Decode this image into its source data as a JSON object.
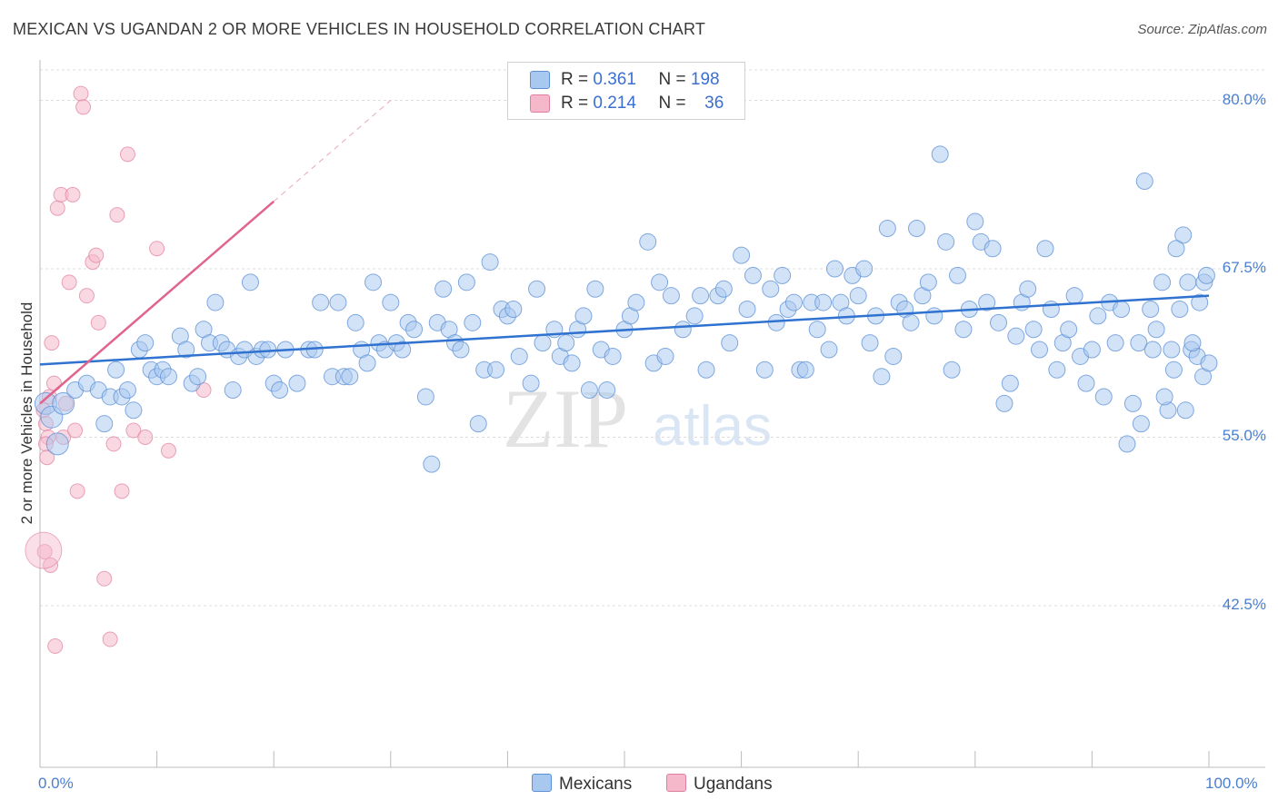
{
  "title": "MEXICAN VS UGANDAN 2 OR MORE VEHICLES IN HOUSEHOLD CORRELATION CHART",
  "source": "Source: ZipAtlas.com",
  "legend_stats": [
    {
      "r_label": "R =",
      "r_value": "0.361",
      "n_label": "N =",
      "n_value": "198",
      "color": "#a8c8f0"
    },
    {
      "r_label": "R =",
      "r_value": "0.214",
      "n_label": "N =",
      "n_value": "36",
      "color": "#f5b8cb"
    }
  ],
  "watermark": {
    "zip": "ZIP",
    "atlas": "atlas"
  },
  "colors": {
    "blue_fill": "#a8c8f0",
    "blue_stroke": "#5b8fd6",
    "blue_line": "#2f72d0",
    "pink_fill": "#f5b8cb",
    "pink_stroke": "#e07fa0",
    "pink_line": "#e0648e",
    "tick_text": "#4a7fd0"
  },
  "chart_data": {
    "type": "scatter",
    "title": "MEXICAN VS UGANDAN 2 OR MORE VEHICLES IN HOUSEHOLD CORRELATION CHART",
    "xlabel": "",
    "ylabel": "2 or more Vehicles in Household",
    "xlim": [
      0,
      100
    ],
    "ylim": [
      30.5,
      83.0
    ],
    "x_tick_labels": [
      "0.0%",
      "100.0%"
    ],
    "y_ticks": [
      42.5,
      55.0,
      67.5,
      80.0
    ],
    "y_tick_labels": [
      "42.5%",
      "55.0%",
      "67.5%",
      "80.0%"
    ],
    "grid": "horizontal dashed",
    "legend_position": "top-center and bottom",
    "series": [
      {
        "name": "Mexicans",
        "r": 0.361,
        "n": 198,
        "trend": {
          "x": [
            0,
            100
          ],
          "y": [
            60.4,
            65.5
          ]
        },
        "points": [
          [
            0.5,
            57.5
          ],
          [
            1,
            56.5
          ],
          [
            1.5,
            54.5
          ],
          [
            2,
            57.5
          ],
          [
            3,
            58.5
          ],
          [
            4,
            59
          ],
          [
            5,
            58.5
          ],
          [
            5.5,
            56
          ],
          [
            6,
            58
          ],
          [
            6.5,
            60
          ],
          [
            7,
            58
          ],
          [
            7.5,
            58.5
          ],
          [
            8,
            57
          ],
          [
            8.5,
            61.5
          ],
          [
            9,
            62
          ],
          [
            9.5,
            60
          ],
          [
            10,
            59.5
          ],
          [
            10.5,
            60
          ],
          [
            11,
            59.5
          ],
          [
            12,
            62.5
          ],
          [
            12.5,
            61.5
          ],
          [
            13,
            59
          ],
          [
            13.5,
            59.5
          ],
          [
            14,
            63
          ],
          [
            14.5,
            62
          ],
          [
            15,
            65
          ],
          [
            15.5,
            62
          ],
          [
            16,
            61.5
          ],
          [
            16.5,
            58.5
          ],
          [
            17,
            61
          ],
          [
            17.5,
            61.5
          ],
          [
            18,
            66.5
          ],
          [
            18.5,
            61
          ],
          [
            19,
            61.5
          ],
          [
            19.5,
            61.5
          ],
          [
            20,
            59
          ],
          [
            20.5,
            58.5
          ],
          [
            21,
            61.5
          ],
          [
            22,
            59
          ],
          [
            23,
            61.5
          ],
          [
            23.5,
            61.5
          ],
          [
            24,
            65
          ],
          [
            25,
            59.5
          ],
          [
            25.5,
            65
          ],
          [
            26,
            59.5
          ],
          [
            26.5,
            59.5
          ],
          [
            27,
            63.5
          ],
          [
            27.5,
            61.5
          ],
          [
            28,
            60.5
          ],
          [
            28.5,
            66.5
          ],
          [
            29,
            62
          ],
          [
            29.5,
            61.5
          ],
          [
            30,
            65
          ],
          [
            30.5,
            62
          ],
          [
            31,
            61.5
          ],
          [
            31.5,
            63.5
          ],
          [
            32,
            63
          ],
          [
            33,
            58
          ],
          [
            33.5,
            53
          ],
          [
            34,
            63.5
          ],
          [
            34.5,
            66
          ],
          [
            35,
            63
          ],
          [
            35.5,
            62
          ],
          [
            36,
            61.5
          ],
          [
            36.5,
            66.5
          ],
          [
            37,
            63.5
          ],
          [
            37.5,
            56
          ],
          [
            38,
            60
          ],
          [
            38.5,
            68
          ],
          [
            39,
            60
          ],
          [
            39.5,
            64.5
          ],
          [
            40,
            64
          ],
          [
            40.5,
            64.5
          ],
          [
            41,
            61
          ],
          [
            42,
            59
          ],
          [
            42.5,
            66
          ],
          [
            43,
            62
          ],
          [
            44,
            63
          ],
          [
            44.5,
            61
          ],
          [
            45,
            62
          ],
          [
            45.5,
            60.5
          ],
          [
            46,
            63
          ],
          [
            46.5,
            64
          ],
          [
            47,
            58.5
          ],
          [
            47.5,
            66
          ],
          [
            48,
            61.5
          ],
          [
            48.5,
            58.5
          ],
          [
            49,
            61
          ],
          [
            50,
            63
          ],
          [
            50.5,
            64
          ],
          [
            51,
            65
          ],
          [
            52,
            69.5
          ],
          [
            52.5,
            60.5
          ],
          [
            53,
            66.5
          ],
          [
            53.5,
            61
          ],
          [
            54,
            65.5
          ],
          [
            55,
            63
          ],
          [
            56,
            64
          ],
          [
            56.5,
            65.5
          ],
          [
            57,
            60
          ],
          [
            58,
            65.5
          ],
          [
            58.5,
            66
          ],
          [
            59,
            62
          ],
          [
            60,
            68.5
          ],
          [
            60.5,
            64.5
          ],
          [
            61,
            67
          ],
          [
            62,
            60
          ],
          [
            62.5,
            66
          ],
          [
            63,
            63.5
          ],
          [
            63.5,
            67
          ],
          [
            64,
            64.5
          ],
          [
            64.5,
            65
          ],
          [
            65,
            60
          ],
          [
            65.5,
            60
          ],
          [
            66,
            65
          ],
          [
            66.5,
            63
          ],
          [
            67,
            65
          ],
          [
            67.5,
            61.5
          ],
          [
            68,
            67.5
          ],
          [
            68.5,
            65
          ],
          [
            69,
            64
          ],
          [
            69.5,
            67
          ],
          [
            70,
            65.5
          ],
          [
            70.5,
            67.5
          ],
          [
            71,
            62
          ],
          [
            71.5,
            64
          ],
          [
            72,
            59.5
          ],
          [
            72.5,
            70.5
          ],
          [
            73,
            61
          ],
          [
            73.5,
            65
          ],
          [
            74,
            64.5
          ],
          [
            74.5,
            63.5
          ],
          [
            75,
            70.5
          ],
          [
            75.5,
            65.5
          ],
          [
            76,
            66.5
          ],
          [
            76.5,
            64
          ],
          [
            77,
            76
          ],
          [
            77.5,
            69.5
          ],
          [
            78,
            60
          ],
          [
            78.5,
            67
          ],
          [
            79,
            63
          ],
          [
            79.5,
            64.5
          ],
          [
            80,
            71
          ],
          [
            80.5,
            69.5
          ],
          [
            81,
            65
          ],
          [
            81.5,
            69
          ],
          [
            82,
            63.5
          ],
          [
            82.5,
            57.5
          ],
          [
            83,
            59
          ],
          [
            83.5,
            62.5
          ],
          [
            84,
            65
          ],
          [
            84.5,
            66
          ],
          [
            85,
            63
          ],
          [
            85.5,
            61.5
          ],
          [
            86,
            69
          ],
          [
            86.5,
            64.5
          ],
          [
            87,
            60
          ],
          [
            87.5,
            62
          ],
          [
            88,
            63
          ],
          [
            88.5,
            65.5
          ],
          [
            89,
            61
          ],
          [
            89.5,
            59
          ],
          [
            90,
            61.5
          ],
          [
            90.5,
            64
          ],
          [
            91,
            58
          ],
          [
            91.5,
            65
          ],
          [
            92,
            62
          ],
          [
            92.5,
            64.5
          ],
          [
            93,
            54.5
          ],
          [
            93.5,
            57.5
          ],
          [
            94,
            62
          ],
          [
            94.5,
            74
          ],
          [
            95,
            64.5
          ],
          [
            95.5,
            63
          ],
          [
            96,
            66.5
          ],
          [
            96.5,
            57
          ],
          [
            97,
            60
          ],
          [
            97.5,
            64.5
          ],
          [
            98,
            57
          ],
          [
            98.5,
            61.5
          ],
          [
            99,
            61
          ],
          [
            99.5,
            59.5
          ],
          [
            100,
            60.5
          ],
          [
            96.8,
            61.5
          ],
          [
            97.8,
            70
          ],
          [
            98.2,
            66.5
          ],
          [
            99.2,
            65
          ],
          [
            99.6,
            66.5
          ],
          [
            94.2,
            56
          ],
          [
            95.2,
            61.5
          ],
          [
            96.2,
            58
          ],
          [
            97.2,
            69
          ],
          [
            98.6,
            62
          ],
          [
            99.8,
            67
          ]
        ]
      },
      {
        "name": "Ugandans",
        "r": 0.214,
        "n": 36,
        "trend": {
          "x": [
            0,
            20
          ],
          "y": [
            57.5,
            72.5
          ]
        },
        "trend_dashed_to": {
          "x": 30,
          "y": 80.0
        },
        "points": [
          [
            0.3,
            57
          ],
          [
            0.5,
            56
          ],
          [
            0.7,
            55
          ],
          [
            0.5,
            54.5
          ],
          [
            0.6,
            53.5
          ],
          [
            0.8,
            58
          ],
          [
            1,
            62
          ],
          [
            1.2,
            59
          ],
          [
            1.5,
            72
          ],
          [
            1.8,
            73
          ],
          [
            2,
            55
          ],
          [
            2.2,
            57.5
          ],
          [
            2.5,
            66.5
          ],
          [
            2.8,
            73
          ],
          [
            3,
            55.5
          ],
          [
            3.2,
            51
          ],
          [
            3.5,
            80.5
          ],
          [
            3.7,
            79.5
          ],
          [
            4,
            65.5
          ],
          [
            4.5,
            68
          ],
          [
            4.8,
            68.5
          ],
          [
            5,
            63.5
          ],
          [
            5.5,
            44.5
          ],
          [
            6,
            40
          ],
          [
            6.3,
            54.5
          ],
          [
            6.6,
            71.5
          ],
          [
            7,
            51
          ],
          [
            7.5,
            76
          ],
          [
            8,
            55.5
          ],
          [
            9,
            55
          ],
          [
            10,
            69
          ],
          [
            11,
            54
          ],
          [
            14,
            58.5
          ],
          [
            0.4,
            46.5
          ],
          [
            0.9,
            45.5
          ],
          [
            1.3,
            39.5
          ]
        ]
      }
    ]
  },
  "x_labels": {
    "left": "0.0%",
    "right": "100.0%"
  },
  "bottom_legend": [
    {
      "label": "Mexicans",
      "color": "#a8c8f0"
    },
    {
      "label": "Ugandans",
      "color": "#f5b8cb"
    }
  ]
}
